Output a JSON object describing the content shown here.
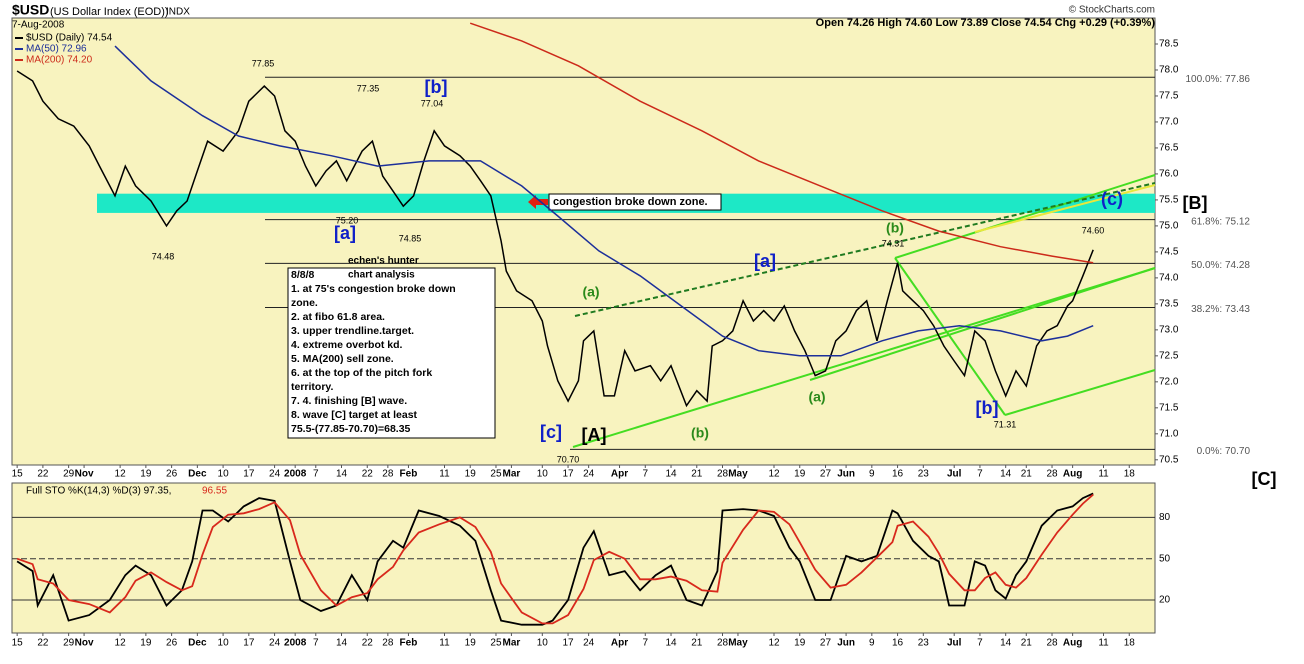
{
  "header": {
    "symbol": "$USD",
    "name": "(US Dollar Index (EOD))",
    "exchange": "INDX",
    "date": "7-Aug-2008",
    "quote": "Open 74.26  High 74.60  Low 73.89  Close 74.54  Chg +0.29 (+0.39%)",
    "source": "© StockCharts.com"
  },
  "chart_data": [
    {
      "type": "line",
      "xlim": [
        -1,
        221
      ],
      "ylim": [
        70.4,
        79.0
      ],
      "xticks": [
        {
          "value": 0,
          "label": "15"
        },
        {
          "value": 5,
          "label": "22"
        },
        {
          "value": 10,
          "label": "29"
        },
        {
          "value": 13,
          "label": "Nov"
        },
        {
          "value": 20,
          "label": "12"
        },
        {
          "value": 25,
          "label": "19"
        },
        {
          "value": 30,
          "label": "26"
        },
        {
          "value": 35,
          "label": "Dec"
        },
        {
          "value": 40,
          "label": "10"
        },
        {
          "value": 45,
          "label": "17"
        },
        {
          "value": 50,
          "label": "24"
        },
        {
          "value": 54,
          "label": "2008"
        },
        {
          "value": 58,
          "label": "7"
        },
        {
          "value": 63,
          "label": "14"
        },
        {
          "value": 68,
          "label": "22"
        },
        {
          "value": 72,
          "label": "28"
        },
        {
          "value": 76,
          "label": "Feb"
        },
        {
          "value": 83,
          "label": "11"
        },
        {
          "value": 88,
          "label": "19"
        },
        {
          "value": 93,
          "label": "25"
        },
        {
          "value": 96,
          "label": "Mar"
        },
        {
          "value": 102,
          "label": "10"
        },
        {
          "value": 107,
          "label": "17"
        },
        {
          "value": 111,
          "label": "24"
        },
        {
          "value": 117,
          "label": "Apr"
        },
        {
          "value": 122,
          "label": "7"
        },
        {
          "value": 127,
          "label": "14"
        },
        {
          "value": 132,
          "label": "21"
        },
        {
          "value": 137,
          "label": "28"
        },
        {
          "value": 140,
          "label": "May"
        },
        {
          "value": 147,
          "label": "12"
        },
        {
          "value": 152,
          "label": "19"
        },
        {
          "value": 157,
          "label": "27"
        },
        {
          "value": 161,
          "label": "Jun"
        },
        {
          "value": 166,
          "label": "9"
        },
        {
          "value": 171,
          "label": "16"
        },
        {
          "value": 176,
          "label": "23"
        },
        {
          "value": 182,
          "label": "Jul"
        },
        {
          "value": 187,
          "label": "7"
        },
        {
          "value": 192,
          "label": "14"
        },
        {
          "value": 196,
          "label": "21"
        },
        {
          "value": 201,
          "label": "28"
        },
        {
          "value": 205,
          "label": "Aug"
        },
        {
          "value": 211,
          "label": "11"
        },
        {
          "value": 216,
          "label": "18"
        }
      ],
      "yticks": [
        {
          "value": 70.5,
          "label": "70.5"
        },
        {
          "value": 71,
          "label": "71.0"
        },
        {
          "value": 71.5,
          "label": "71.5"
        },
        {
          "value": 72,
          "label": "72.0"
        },
        {
          "value": 72.5,
          "label": "72.5"
        },
        {
          "value": 73,
          "label": "73.0"
        },
        {
          "value": 73.5,
          "label": "73.5"
        },
        {
          "value": 74,
          "label": "74.0"
        },
        {
          "value": 74.5,
          "label": "74.5"
        },
        {
          "value": 75,
          "label": "75.0"
        },
        {
          "value": 75.5,
          "label": "75.5"
        },
        {
          "value": 76,
          "label": "76.0"
        },
        {
          "value": 76.5,
          "label": "76.5"
        },
        {
          "value": 77,
          "label": "77.0"
        },
        {
          "value": 77.5,
          "label": "77.5"
        },
        {
          "value": 78,
          "label": "78.0"
        },
        {
          "value": 78.5,
          "label": "78.5"
        }
      ],
      "series": [
        {
          "name": "$USD (Daily) 74.54",
          "color": "#000000",
          "x": [
            0,
            3,
            5,
            8,
            11,
            14,
            16,
            19,
            21,
            23,
            26,
            29,
            31,
            33,
            35,
            37,
            40,
            43,
            45,
            48,
            50,
            52,
            54,
            56,
            58,
            60,
            62,
            64,
            67,
            69,
            71,
            73,
            75,
            77,
            79,
            81,
            83,
            86,
            88,
            90,
            92,
            94,
            95,
            97,
            100,
            102,
            103,
            105,
            107,
            109,
            110,
            112,
            114,
            116,
            118,
            120,
            123,
            125,
            127,
            130,
            132,
            134,
            135,
            137,
            139,
            141,
            143,
            145,
            147,
            149,
            151,
            153,
            155,
            157,
            159,
            161,
            163,
            165,
            167,
            169,
            171,
            172,
            174,
            176,
            178,
            180,
            182,
            184,
            186,
            188,
            190,
            192,
            194,
            196,
            198,
            200,
            202,
            204,
            205,
            207,
            209
          ],
          "values": [
            77.98,
            77.79,
            77.4,
            77.06,
            76.92,
            76.54,
            76.15,
            75.58,
            76.15,
            75.77,
            75.48,
            75.0,
            75.29,
            75.48,
            76.06,
            76.63,
            76.44,
            76.83,
            77.4,
            77.69,
            77.5,
            76.83,
            76.63,
            76.15,
            75.77,
            76.06,
            76.25,
            75.87,
            76.44,
            76.63,
            75.96,
            75.67,
            75.38,
            75.58,
            76.25,
            76.83,
            76.54,
            76.35,
            76.15,
            75.87,
            75.58,
            74.71,
            74.13,
            73.75,
            73.56,
            73.17,
            72.69,
            72.02,
            71.63,
            72.02,
            72.79,
            72.98,
            71.73,
            71.73,
            72.6,
            72.21,
            72.31,
            72.02,
            72.31,
            71.54,
            71.83,
            71.63,
            72.69,
            72.79,
            72.98,
            73.56,
            73.17,
            73.37,
            73.17,
            73.46,
            72.98,
            72.6,
            72.12,
            72.21,
            72.79,
            72.98,
            73.37,
            73.56,
            72.79,
            73.56,
            74.29,
            73.75,
            73.56,
            73.37,
            73.08,
            72.69,
            72.4,
            72.12,
            72.98,
            72.79,
            72.21,
            71.73,
            72.21,
            71.92,
            72.69,
            72.98,
            73.08,
            73.46,
            73.56,
            74.04,
            74.54
          ]
        },
        {
          "name": "MA(50) 72.96",
          "color": "#1c2f9a",
          "x": [
            19,
            26,
            36,
            43,
            51,
            61,
            70,
            80,
            90,
            98,
            105,
            113,
            121,
            129,
            137,
            144,
            152,
            160,
            168,
            175,
            183,
            191,
            199,
            204,
            209
          ],
          "values": [
            78.46,
            77.79,
            77.12,
            76.73,
            76.54,
            76.35,
            76.15,
            76.25,
            76.25,
            75.77,
            75.19,
            74.52,
            74.04,
            73.46,
            72.88,
            72.6,
            72.5,
            72.5,
            72.79,
            72.98,
            73.08,
            72.98,
            72.79,
            72.88,
            73.08
          ]
        },
        {
          "name": "MA(200) 74.20",
          "color": "#cc2a1a",
          "x": [
            88,
            98,
            109,
            121,
            133,
            144,
            156,
            168,
            179,
            191,
            201,
            209
          ],
          "values": [
            78.9,
            78.56,
            78.08,
            77.4,
            76.83,
            76.25,
            75.77,
            75.29,
            74.9,
            74.6,
            74.42,
            74.29
          ]
        }
      ],
      "zone": [
        75.25,
        75.62
      ],
      "zone_color": "#1de8c6",
      "zone_label": "congestion broke down zone.",
      "fib_levels": [
        {
          "label": "100.0%: 77.86",
          "value": 77.86
        },
        {
          "label": "61.8%: 75.12",
          "value": 75.12
        },
        {
          "label": "50.0%: 74.28",
          "value": 74.28
        },
        {
          "label": "38.2%: 73.43",
          "value": 73.43
        },
        {
          "label": "0.0%: 70.70",
          "value": 70.7
        }
      ],
      "annotations": [
        "77.85",
        "77.35",
        "[b]",
        "77.04",
        "75.20",
        "[a]",
        "74.85",
        "74.48",
        "[c]",
        "[A]",
        "70.70",
        "(a)",
        "(b)",
        "[a]",
        "(b)",
        "74.31",
        "(a)",
        "[b]",
        "71.31",
        "74.60",
        "(c)",
        "[B]",
        "[C]"
      ],
      "analysis": {
        "title": "echen's hunter",
        "subtitle": "chart analysis",
        "lines": [
          "8/8/8",
          "1. at 75's congestion broke down",
          "zone.",
          "2. at fibo 61.8 area.",
          "3. upper trendline.target.",
          "4. extreme overbot kd.",
          "5. MA(200) sell zone.",
          "6. at the top of the pitch fork",
          "territory.",
          "7. 4. finishing [B] wave.",
          "8. wave [C] target at least",
          "75.5-(77.85-70.70)=68.35"
        ]
      }
    },
    {
      "type": "line",
      "title": "Full STO %K(14,3) %D(3) 97.35,",
      "xlim": [
        -1,
        221
      ],
      "ylim": [
        -4,
        105
      ],
      "yticks": [
        20,
        50,
        80
      ],
      "series": [
        {
          "name": "%K",
          "color": "#000000",
          "x": [
            0,
            3,
            4,
            7,
            10,
            14,
            18,
            21,
            23,
            26,
            29,
            32,
            34,
            36,
            38,
            41,
            44,
            47,
            50,
            53,
            55,
            59,
            62,
            65,
            68,
            70,
            73,
            75,
            78,
            82,
            86,
            89,
            92,
            94,
            98,
            102,
            104,
            107,
            110,
            112,
            115,
            118,
            121,
            124,
            127,
            130,
            133,
            136,
            137,
            141,
            144,
            147,
            150,
            152,
            155,
            158,
            161,
            164,
            167,
            170,
            171,
            174,
            177,
            179,
            181,
            184,
            186,
            188,
            190,
            192,
            194,
            196,
            199,
            202,
            205,
            207,
            209
          ],
          "values": [
            48,
            41,
            16,
            38,
            5,
            9,
            20,
            38,
            45,
            38,
            16,
            27,
            48,
            85,
            85,
            77,
            88,
            94,
            92,
            48,
            20,
            12,
            16,
            38,
            20,
            48,
            63,
            58,
            85,
            81,
            74,
            63,
            27,
            5,
            2,
            2,
            5,
            20,
            58,
            70,
            38,
            41,
            27,
            38,
            45,
            20,
            16,
            41,
            85,
            86,
            85,
            81,
            58,
            48,
            20,
            20,
            52,
            48,
            52,
            85,
            83,
            63,
            52,
            48,
            16,
            16,
            48,
            45,
            27,
            21,
            38,
            48,
            74,
            85,
            88,
            94,
            97.35
          ]
        },
        {
          "name": "96.55",
          "color": "#d8281c",
          "x": [
            0,
            3,
            4,
            7,
            10,
            14,
            18,
            21,
            23,
            26,
            29,
            32,
            34,
            36,
            38,
            41,
            44,
            47,
            50,
            53,
            55,
            59,
            62,
            65,
            68,
            70,
            73,
            75,
            78,
            82,
            86,
            89,
            92,
            94,
            98,
            102,
            104,
            107,
            110,
            112,
            115,
            118,
            121,
            124,
            127,
            130,
            133,
            136,
            137,
            141,
            144,
            147,
            150,
            152,
            155,
            158,
            161,
            164,
            167,
            170,
            171,
            174,
            177,
            179,
            181,
            184,
            186,
            188,
            190,
            192,
            194,
            196,
            199,
            202,
            205,
            207,
            209
          ],
          "values": [
            50,
            46,
            35,
            32,
            20,
            17,
            11,
            22,
            34,
            40,
            33,
            27,
            30,
            53,
            73,
            82,
            83,
            86,
            91,
            78,
            53,
            27,
            16,
            22,
            25,
            35,
            44,
            56,
            69,
            75,
            80,
            73,
            55,
            32,
            11,
            3,
            3,
            9,
            28,
            49,
            55,
            50,
            35,
            35,
            37,
            34,
            27,
            26,
            47,
            71,
            85,
            84,
            75,
            62,
            42,
            29,
            31,
            40,
            51,
            62,
            74,
            77,
            66,
            54,
            39,
            27,
            27,
            36,
            40,
            31,
            29,
            36,
            53,
            69,
            82,
            90,
            96.55
          ]
        }
      ]
    }
  ]
}
